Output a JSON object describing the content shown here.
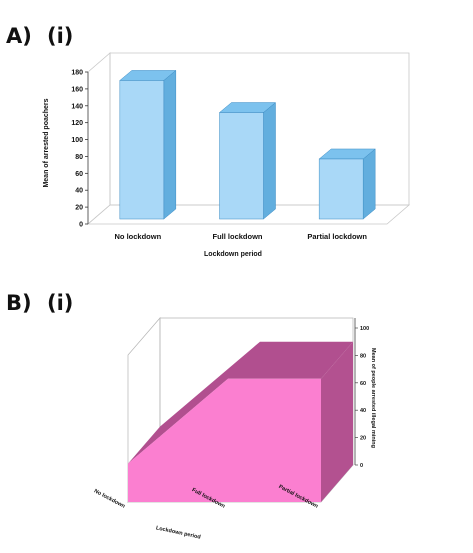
{
  "panels": {
    "a_label": "A)",
    "a_sub": "(i)",
    "b_label": "B)",
    "b_sub": "(i)"
  },
  "chart_data": [
    {
      "type": "bar",
      "style": "3d",
      "categories": [
        "No lockdown",
        "Full lockdown",
        "Partial lockdown"
      ],
      "values": [
        170,
        132,
        77
      ],
      "xlabel": "Lockdown period",
      "ylabel": "Mean of arrested poachers",
      "ylim": [
        0,
        180
      ],
      "yticks": [
        0,
        20,
        40,
        60,
        80,
        100,
        120,
        140,
        160,
        180
      ],
      "bar_color": "#a9d8f7",
      "bar_side_color": "#62aede",
      "bar_top_color": "#7cc2ee",
      "grid": false
    },
    {
      "type": "area",
      "style": "3d",
      "categories": [
        "No lockdown",
        "Full lockdown",
        "Partial lockdown"
      ],
      "values": [
        28,
        90,
        90
      ],
      "xlabel": "Lockdown period",
      "ylabel": "Mean of people arrested illegal mining",
      "ylim": [
        0,
        100
      ],
      "yticks": [
        0,
        20,
        40,
        60,
        80,
        100
      ],
      "front_color": "#fb7fd0",
      "top_color": "#b14f8f",
      "side_color": "#b35190",
      "grid": false
    }
  ]
}
